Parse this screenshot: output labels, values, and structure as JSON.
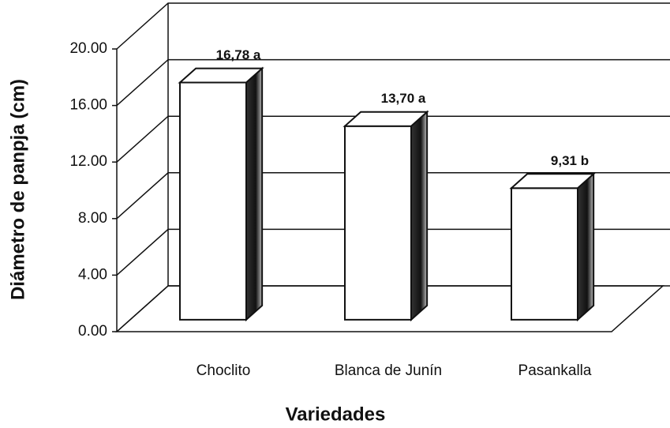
{
  "chart_data": {
    "type": "bar3d",
    "categories": [
      "Choclito",
      "Blanca de Junín",
      "Pasankalla"
    ],
    "values": [
      16.78,
      13.7,
      9.31
    ],
    "value_labels": [
      "16,78 a",
      "13,70 a",
      "9,31 b"
    ],
    "ylim": [
      0,
      20
    ],
    "yticks": [
      {
        "value": 0,
        "label": "0.00"
      },
      {
        "value": 4,
        "label": "4.00"
      },
      {
        "value": 8,
        "label": "8.00"
      },
      {
        "value": 12,
        "label": "12.00"
      },
      {
        "value": 16,
        "label": "16.00"
      },
      {
        "value": 20,
        "label": "20.00"
      }
    ],
    "ylabel": "Diámetro de panpja (cm)",
    "xlabel": "Variedades",
    "grid": true,
    "color": "#ffffff"
  }
}
